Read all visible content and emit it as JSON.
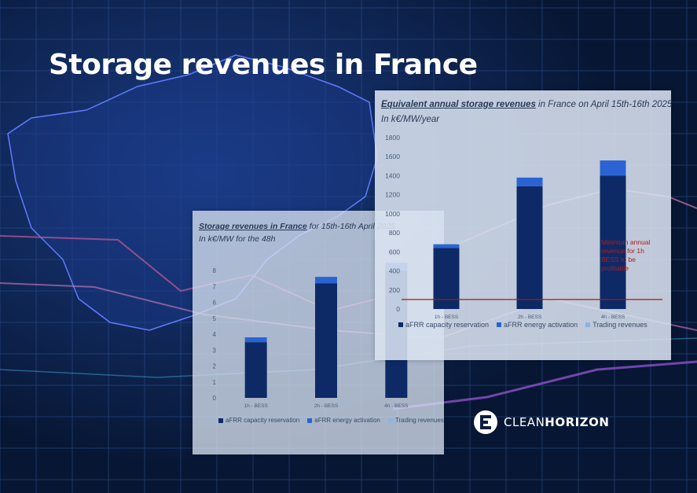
{
  "page": {
    "title": "Storage revenues in France"
  },
  "logo": {
    "text_light": "CLEAN",
    "text_bold": "HORIZON"
  },
  "colors": {
    "background": "#0b1d3f",
    "afrr_capacity": "#0d2a66",
    "afrr_energy": "#2a63d4",
    "trading": "#8fb2df",
    "threshold": "#a31818"
  },
  "chart_data": [
    {
      "type": "bar",
      "title_bold": "Storage revenues in France",
      "title_rest": " for 15th-16th April 2025",
      "subtitle": "In k€/MW for the 48h",
      "categories": [
        "1h - BESS",
        "2h - BESS",
        "4h - BESS"
      ],
      "series": [
        {
          "name": "aFRR capacity reservation",
          "values": [
            3.5,
            7.2,
            8.0
          ]
        },
        {
          "name": "aFRR energy activation",
          "values": [
            0.3,
            0.4,
            0.5
          ]
        },
        {
          "name": "Trading revenues",
          "values": [
            0,
            0,
            0
          ]
        }
      ],
      "ylim": [
        0,
        8
      ],
      "yticks": [
        0,
        1,
        2,
        3,
        4,
        5,
        6,
        7,
        8
      ],
      "grid": false,
      "legend": "bottom"
    },
    {
      "type": "bar",
      "title_bold": "Equivalent annual storage revenues",
      "title_rest": " in France on April 15th-16th 2025",
      "subtitle": "In k€/MW/year",
      "categories": [
        "1h - BESS",
        "2h - BESS",
        "4h - BESS"
      ],
      "series": [
        {
          "name": "aFRR capacity reservation",
          "values": [
            640,
            1290,
            1400
          ]
        },
        {
          "name": "aFRR energy activation",
          "values": [
            40,
            90,
            160
          ]
        },
        {
          "name": "Trading revenues",
          "values": [
            0,
            0,
            0
          ]
        }
      ],
      "ylim": [
        0,
        1800
      ],
      "yticks": [
        0,
        200,
        400,
        600,
        800,
        1000,
        1200,
        1400,
        1600,
        1800
      ],
      "threshold": {
        "value": 100,
        "label": "Minimum annual revenue for 1h BESS to be profitable"
      },
      "grid": false,
      "legend": "bottom"
    }
  ]
}
